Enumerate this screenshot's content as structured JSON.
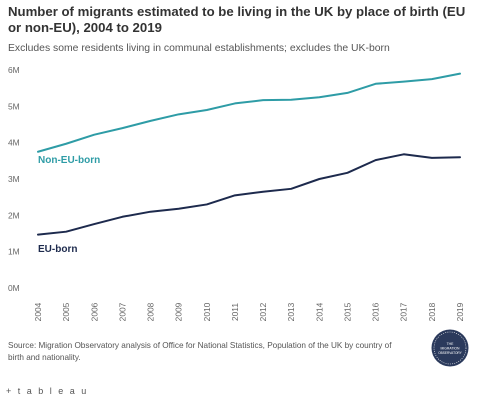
{
  "chart_data": {
    "type": "line",
    "title": "Number of migrants estimated to be living in the UK by place of birth (EU or non-EU), 2004 to 2019",
    "subtitle": "Excludes some residents living in communal establishments; excludes the UK-born",
    "x": [
      "2004",
      "2005",
      "2006",
      "2007",
      "2008",
      "2009",
      "2010",
      "2011",
      "2012",
      "2013",
      "2014",
      "2015",
      "2016",
      "2017",
      "2018",
      "2019"
    ],
    "ylim": [
      0,
      6
    ],
    "yticks": [
      0,
      1,
      2,
      3,
      4,
      5,
      6
    ],
    "ytick_labels": [
      "0M",
      "1M",
      "2M",
      "3M",
      "4M",
      "5M",
      "6M"
    ],
    "grid": false,
    "series": [
      {
        "name": "Non-EU-born",
        "color": "#2e9ca6",
        "values": [
          3.75,
          3.97,
          4.22,
          4.4,
          4.6,
          4.78,
          4.9,
          5.08,
          5.17,
          5.18,
          5.25,
          5.37,
          5.62,
          5.68,
          5.75,
          5.9
        ]
      },
      {
        "name": "EU-born",
        "color": "#1d2a4d",
        "values": [
          1.47,
          1.55,
          1.76,
          1.96,
          2.1,
          2.18,
          2.3,
          2.55,
          2.65,
          2.73,
          3.0,
          3.17,
          3.52,
          3.68,
          3.58,
          3.6
        ]
      }
    ]
  },
  "source": "Source: Migration Observatory analysis of Office for National Statistics, Population of the UK by country of birth and nationality.",
  "logo_text": "THE MIGRATION OBSERVATORY",
  "footer_brand": "+ t a b l e a u",
  "colors": {
    "text": "#333333",
    "muted": "#555555",
    "axis": "#666666"
  }
}
